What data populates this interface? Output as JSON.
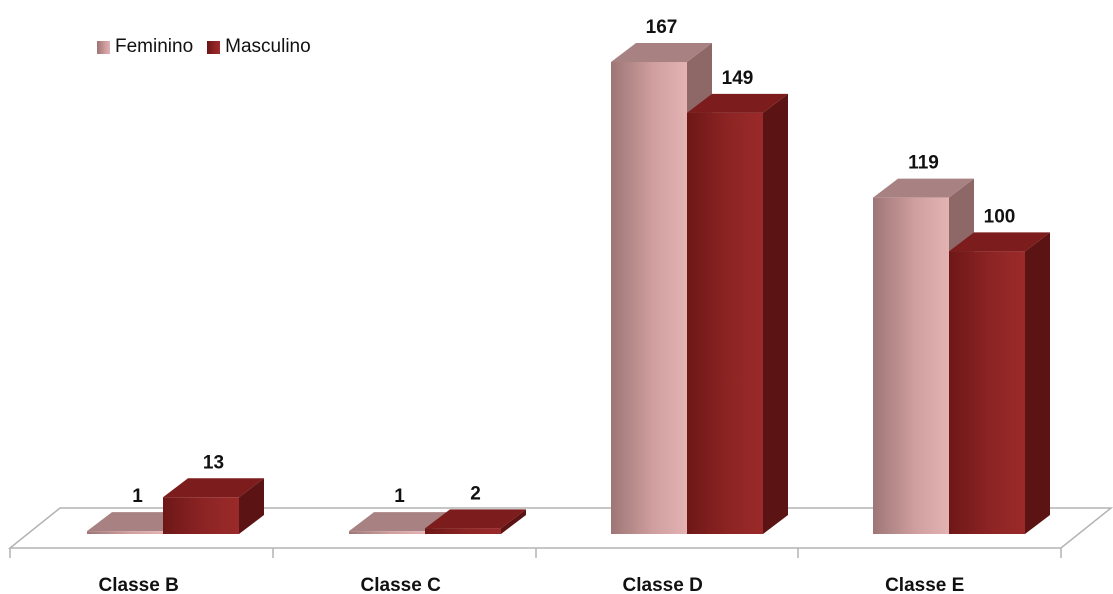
{
  "chart_data": {
    "type": "bar",
    "categories": [
      "Classe B",
      "Classe C",
      "Classe D",
      "Classe E"
    ],
    "series": [
      {
        "name": "Feminino",
        "values": [
          1,
          1,
          167,
          119
        ]
      },
      {
        "name": "Masculino",
        "values": [
          13,
          2,
          149,
          100
        ]
      }
    ],
    "title": "",
    "xlabel": "",
    "ylabel": "",
    "ylim": [
      0,
      180
    ],
    "legend_position": "top-left",
    "grid": false,
    "colors": {
      "Feminino": "#c99797",
      "Masculino": "#8b2323"
    }
  }
}
